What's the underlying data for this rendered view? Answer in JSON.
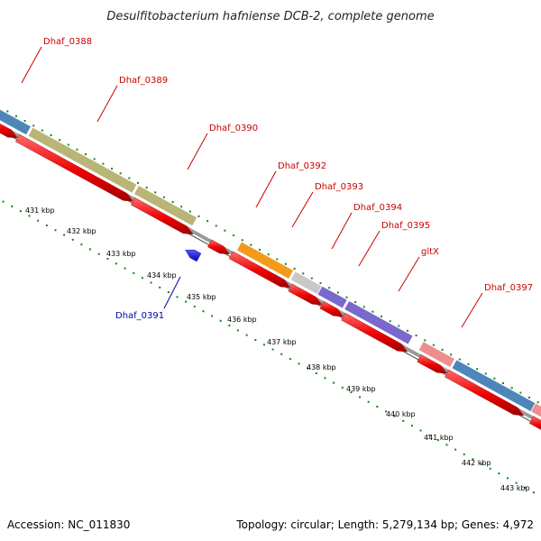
{
  "title": "Desulfitobacterium hafniense DCB-2, complete genome",
  "footer": {
    "accession": "Accession: NC_011830",
    "summary": "Topology: circular; Length: 5,279,134 bp; Genes: 4,972"
  },
  "colors": {
    "forward_gene": "#ee0000",
    "reverse_gene": "#0000dd",
    "label_forward": "#cc0000",
    "label_reverse": "#0000aa",
    "backbone": "#888888",
    "tick": "#0a8a0a"
  },
  "ticks": [
    {
      "label": "431 kbp"
    },
    {
      "label": "432 kbp"
    },
    {
      "label": "433 kbp"
    },
    {
      "label": "434 kbp"
    },
    {
      "label": "435 kbp"
    },
    {
      "label": "436 kbp"
    },
    {
      "label": "437 kbp"
    },
    {
      "label": "438 kbp"
    },
    {
      "label": "439 kbp"
    },
    {
      "label": "440 kbp"
    },
    {
      "label": "441 kbp"
    },
    {
      "label": "442 kbp"
    },
    {
      "label": "443 kbp"
    }
  ],
  "genes": [
    {
      "name": "Dhaf_0388",
      "strand": "+",
      "cog_color": "#4f86b9"
    },
    {
      "name": "Dhaf_0389",
      "strand": "+",
      "cog_color": "#b8b577"
    },
    {
      "name": "Dhaf_0390",
      "strand": "+",
      "cog_color": "#b8b577"
    },
    {
      "name": "Dhaf_0391",
      "strand": "-",
      "cog_color": ""
    },
    {
      "name": "Dhaf_0392",
      "strand": "+",
      "cog_color": "#f39a1c"
    },
    {
      "name": "Dhaf_0393",
      "strand": "+",
      "cog_color": "#c8c8c8"
    },
    {
      "name": "Dhaf_0394",
      "strand": "+",
      "cog_color": "#7a68cc"
    },
    {
      "name": "Dhaf_0395",
      "strand": "+",
      "cog_color": "#7a68cc"
    },
    {
      "name": "gltX",
      "strand": "+",
      "cog_color": "#ee8f8f"
    },
    {
      "name": "Dhaf_0397",
      "strand": "+",
      "cog_color": "#4f86b9"
    },
    {
      "name": "",
      "strand": "+",
      "cog_color": "#ee8f8f"
    },
    {
      "name": "",
      "strand": "+",
      "cog_color": "#666666"
    }
  ]
}
